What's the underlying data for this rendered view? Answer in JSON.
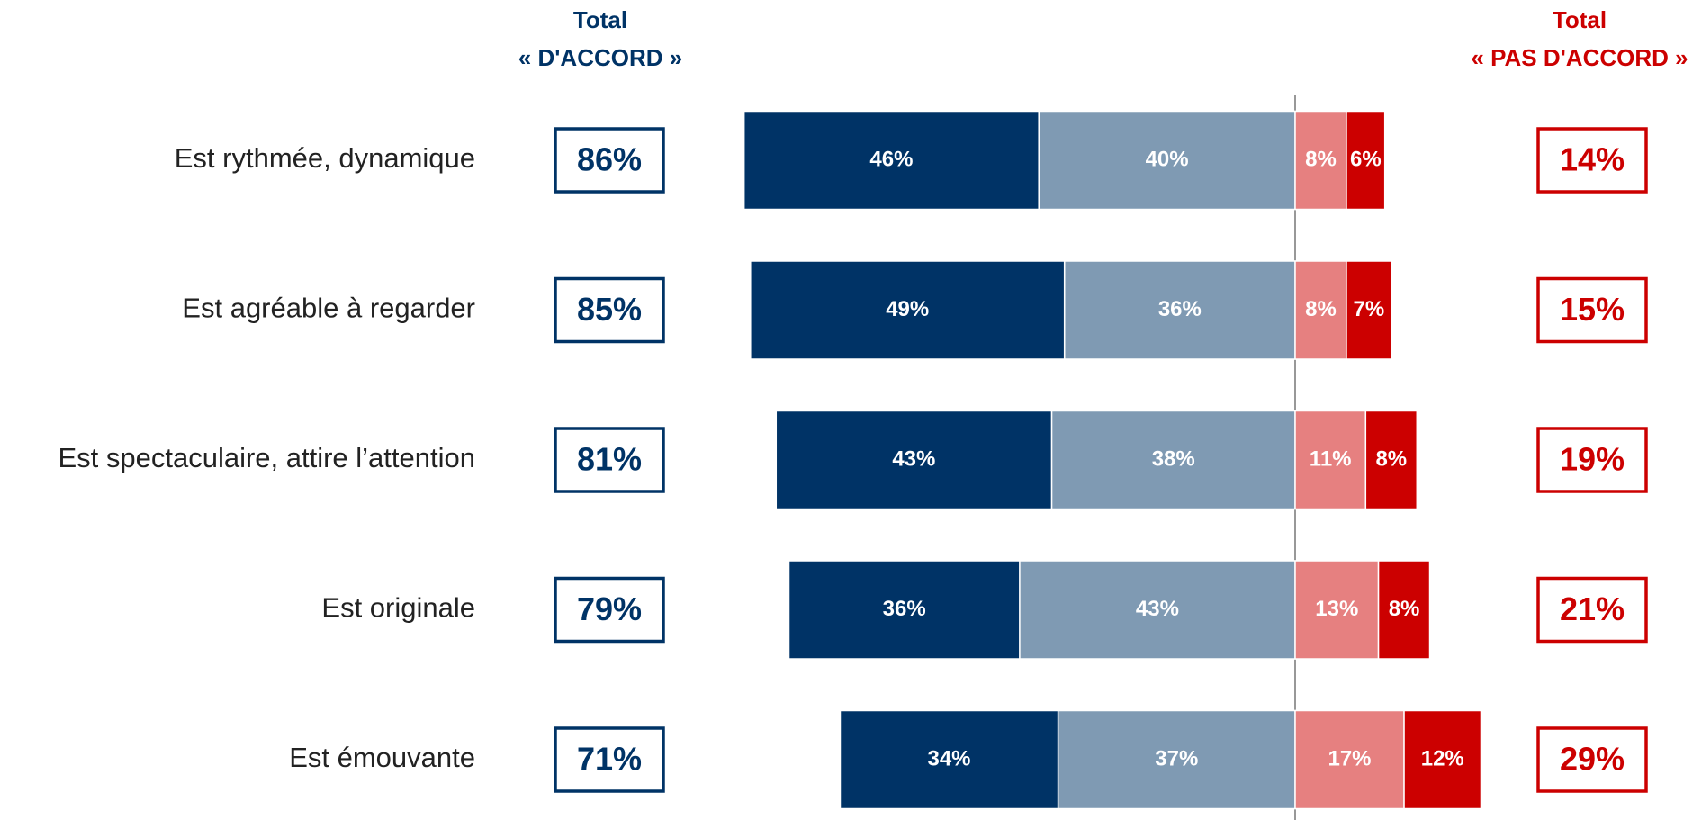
{
  "chart_data": {
    "type": "diverging-bar",
    "agree_header": [
      "Total",
      "« D'ACCORD »"
    ],
    "disagree_header": [
      "Total",
      "« PAS D'ACCORD »"
    ],
    "categories": [
      "Est rythmée, dynamique",
      "Est agréable à regarder",
      "Est spectaculaire, attire l’attention",
      "Est originale",
      "Est émouvante"
    ],
    "series": [
      {
        "color": "#7f9ab3",
        "side": "left",
        "values": [
          40,
          36,
          38,
          43,
          37
        ],
        "value_labels": [
          "40%",
          "36%",
          "38%",
          "43%",
          "37%"
        ]
      },
      {
        "color": "#003366",
        "side": "left",
        "values": [
          46,
          49,
          43,
          36,
          34
        ],
        "value_labels": [
          "46%",
          "49%",
          "43%",
          "36%",
          "34%"
        ]
      },
      {
        "color": "#e68080",
        "side": "right",
        "values": [
          8,
          8,
          11,
          13,
          17
        ],
        "value_labels": [
          "8%",
          "8%",
          "11%",
          "13%",
          "17%"
        ]
      },
      {
        "color": "#cc0000",
        "side": "right",
        "values": [
          6,
          7,
          8,
          8,
          12
        ],
        "value_labels": [
          "6%",
          "7%",
          "8%",
          "8%",
          "12%"
        ]
      }
    ],
    "agree_totals": {
      "color": "#003366",
      "values": [
        86,
        85,
        81,
        79,
        71
      ],
      "value_labels": [
        "86%",
        "85%",
        "81%",
        "79%",
        "71%"
      ]
    },
    "disagree_totals": {
      "color": "#cc0000",
      "values": [
        14,
        15,
        19,
        21,
        29
      ],
      "value_labels": [
        "14%",
        "15%",
        "19%",
        "21%",
        "29%"
      ]
    }
  }
}
